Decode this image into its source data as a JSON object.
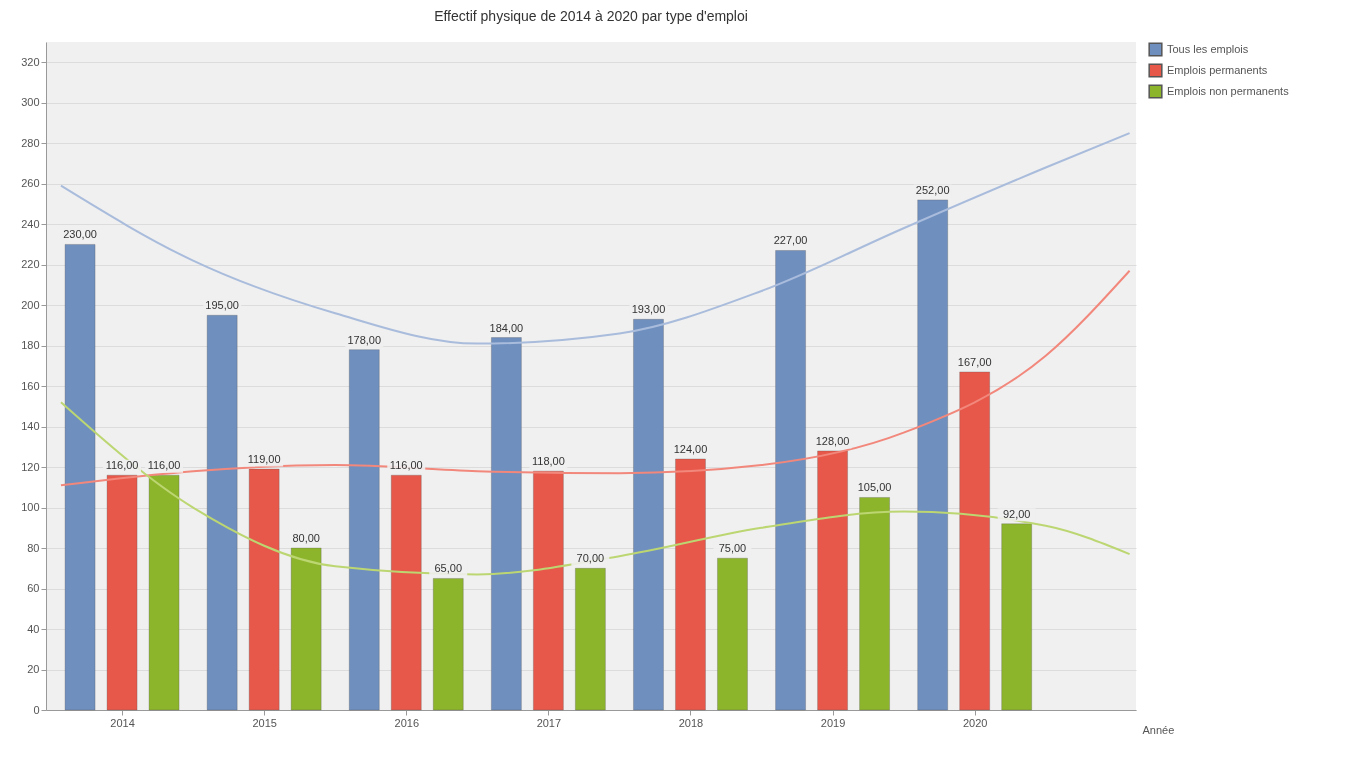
{
  "chart_data": {
    "type": "bar",
    "title": "Effectif physique de 2014 à 2020 par type d'emploi",
    "xlabel": "Année",
    "x": [
      2014,
      2015,
      2016,
      2017,
      2018,
      2019,
      2020
    ],
    "xlim": [
      2013.5,
      2021.1
    ],
    "xticks": [
      2014,
      2015,
      2016,
      2017,
      2018,
      2019,
      2020
    ],
    "ylim": [
      0,
      330
    ],
    "yticks": [
      0,
      20,
      40,
      60,
      80,
      100,
      120,
      140,
      160,
      180,
      200,
      220,
      240,
      260,
      280,
      300,
      320
    ],
    "grid": "y",
    "legend": "top right",
    "series": [
      {
        "name": "Tous les emplois",
        "color": "#6f8fbf",
        "values": [
          230,
          195,
          178,
          184,
          193,
          227,
          252
        ],
        "value_labels": [
          "230,00",
          "195,00",
          "178,00",
          "184,00",
          "193,00",
          "227,00",
          "252,00"
        ]
      },
      {
        "name": "Emplois permanents",
        "color": "#e8584a",
        "values": [
          116,
          119,
          116,
          118,
          124,
          128,
          167
        ],
        "value_labels": [
          "116,00",
          "119,00",
          "116,00",
          "118,00",
          "124,00",
          "128,00",
          "167,00"
        ]
      },
      {
        "name": "Emplois non permanents",
        "color": "#8db52c",
        "values": [
          116,
          80,
          65,
          70,
          75,
          105,
          92
        ],
        "value_labels": [
          "116,00",
          "80,00",
          "65,00",
          "70,00",
          "75,00",
          "105,00",
          "92,00"
        ]
      },
      {
        "type": "line",
        "color": "#a9bcdc",
        "x": [
          2013.57,
          2014.5,
          2015.5,
          2016.5,
          2017.5,
          2018.5,
          2019.5,
          2020.5,
          2021.09
        ],
        "values": [
          259,
          222,
          196,
          181,
          186,
          207,
          238,
          268,
          285
        ]
      },
      {
        "type": "line",
        "color": "#f2877c",
        "x": [
          2013.57,
          2014.5,
          2015.5,
          2016.5,
          2017.5,
          2018.5,
          2019.5,
          2020.5,
          2021.09
        ],
        "values": [
          111,
          118,
          121,
          118,
          117,
          121,
          137,
          175,
          217
        ]
      },
      {
        "type": "line",
        "color": "#bcd672",
        "x": [
          2013.57,
          2014.5,
          2015.5,
          2016.5,
          2017.5,
          2018.5,
          2019.5,
          2020.5,
          2021.09
        ],
        "values": [
          152,
          100,
          71,
          67,
          76,
          90,
          98,
          91,
          77
        ]
      }
    ]
  }
}
